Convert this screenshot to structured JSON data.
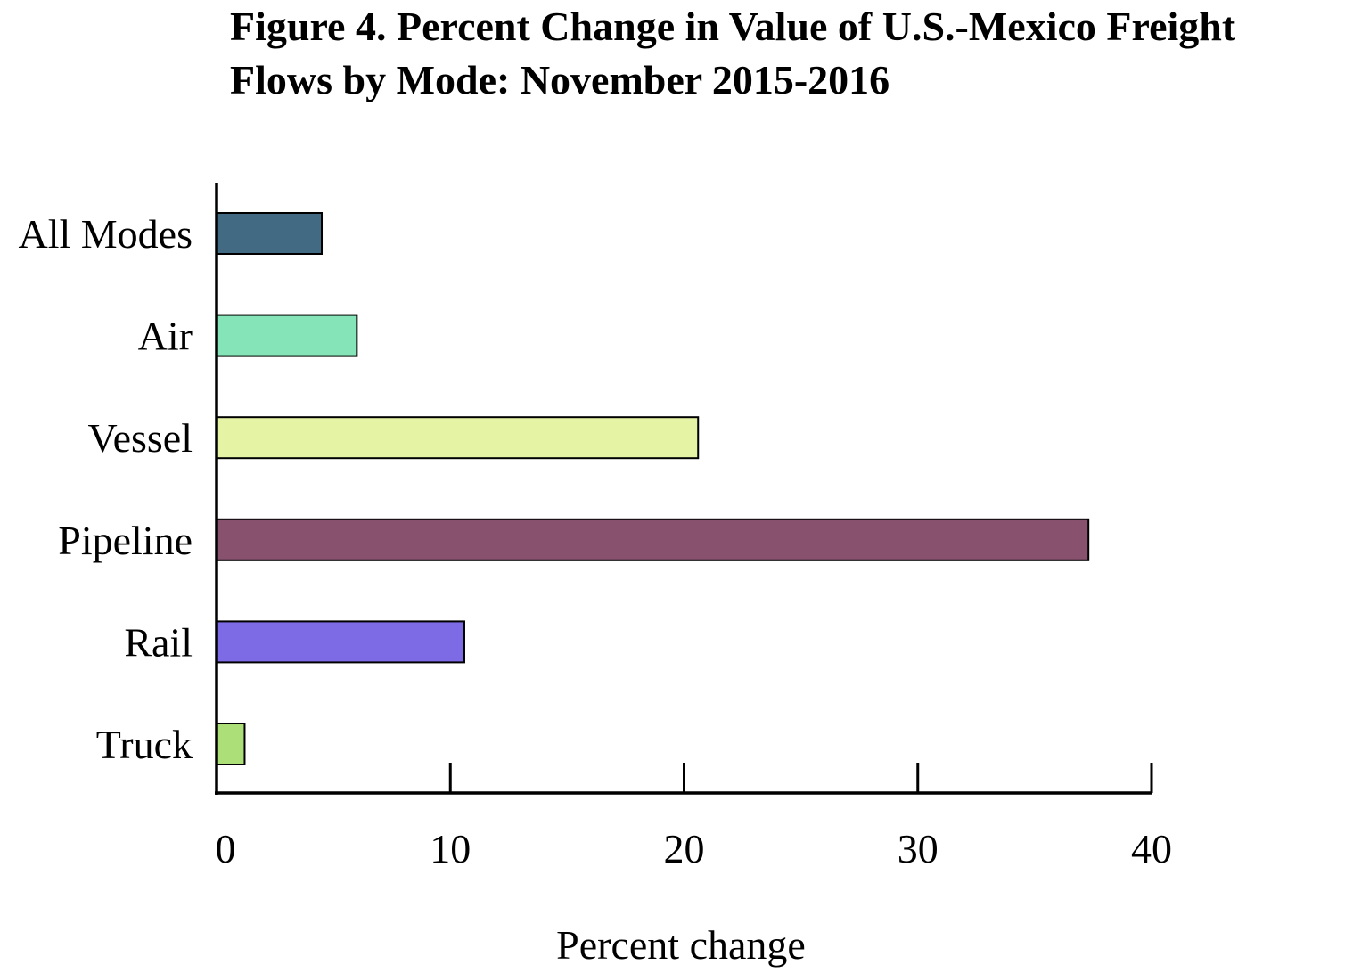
{
  "chart_data": {
    "type": "bar",
    "orientation": "horizontal",
    "title": "Figure 4.  Percent Change in Value of U.S.-Mexico Freight\nFlows by Mode: November 2015-2016",
    "xlabel": "Percent change",
    "ylabel": "",
    "categories": [
      "All Modes",
      "Air",
      "Vessel",
      "Pipeline",
      "Rail",
      "Truck"
    ],
    "values": [
      4.5,
      6.0,
      20.6,
      37.3,
      10.6,
      1.2
    ],
    "colors": [
      "#436a83",
      "#86e5b8",
      "#e5f3a5",
      "#88526e",
      "#7c6be5",
      "#addf79"
    ],
    "xlim": [
      0,
      40
    ],
    "xticks": [
      "0",
      "10",
      "20",
      "30",
      "40"
    ],
    "grid": false,
    "legend": "none"
  }
}
